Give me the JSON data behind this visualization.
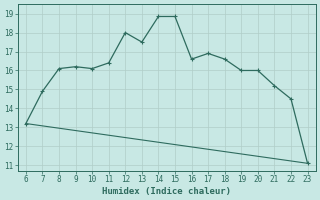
{
  "x": [
    6,
    7,
    8,
    9,
    10,
    11,
    12,
    13,
    14,
    15,
    16,
    17,
    18,
    19,
    20,
    21,
    22,
    23
  ],
  "y": [
    13.2,
    14.9,
    16.1,
    16.2,
    16.1,
    16.4,
    18.0,
    17.5,
    18.85,
    18.85,
    16.6,
    16.9,
    16.6,
    16.0,
    16.0,
    15.2,
    14.5,
    11.1
  ],
  "y_bottom_start": 13.2,
  "y_bottom_end": 11.1,
  "line_color": "#2E6B5E",
  "bg_color": "#C8E8E4",
  "grid_major_color": "#B0CEC8",
  "grid_minor_color": "#D0E8E4",
  "xlabel": "Humidex (Indice chaleur)",
  "xlim": [
    5.5,
    23.5
  ],
  "ylim": [
    10.7,
    19.5
  ],
  "yticks": [
    11,
    12,
    13,
    14,
    15,
    16,
    17,
    18,
    19
  ],
  "xticks": [
    6,
    7,
    8,
    9,
    10,
    11,
    12,
    13,
    14,
    15,
    16,
    17,
    18,
    19,
    20,
    21,
    22,
    23
  ],
  "tick_fontsize": 5.5,
  "xlabel_fontsize": 6.5
}
